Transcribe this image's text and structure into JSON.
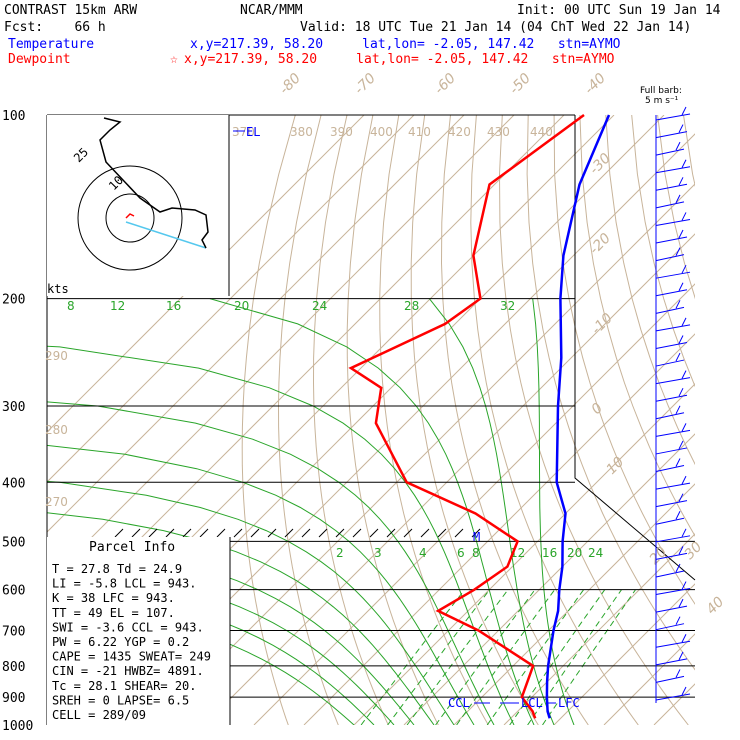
{
  "header": {
    "model": "CONTRAST 15km ARW",
    "center": "NCAR/MMM",
    "init": "Init: 00 UTC Sun 19 Jan 14",
    "fcst": "Fcst:    66 h",
    "valid": "Valid: 18 UTC Tue 21 Jan 14 (04 ChT Wed 22 Jan 14)",
    "temperature_label": "Temperature",
    "temperature_loc": "x,y=217.39, 58.20     lat,lon= -2.05, 147.42   stn=AYMO",
    "dewpoint_label": "Dewpoint",
    "dewpoint_loc": "x,y=217.39, 58.20     lat,lon= -2.05, 147.42   stn=AYMO",
    "dewpoint_marker": "☆"
  },
  "colors": {
    "temperature": "#0000ff",
    "dewpoint": "#ff0000",
    "isotherm": "#c8b49a",
    "green": "#2aa52a",
    "black": "#000000",
    "wind": "#0000ff",
    "hodo_line": "#55c8ee"
  },
  "chart_data": {
    "type": "skew-t",
    "pressure_levels": [
      100,
      200,
      300,
      400,
      500,
      600,
      700,
      800,
      900,
      1000
    ],
    "pressure_labels": [
      "100",
      "200",
      "300",
      "400",
      "500",
      "600",
      "700",
      "800",
      "900",
      "1000"
    ],
    "isotherm_labels": [
      "-80",
      "-70",
      "-60",
      "-50",
      "-40",
      "-30",
      "-20",
      "-10",
      "0",
      "10",
      "20",
      "30",
      "40"
    ],
    "theta_labels": [
      "370",
      "380",
      "390",
      "400",
      "410",
      "420",
      "430",
      "440",
      "290",
      "280",
      "270"
    ],
    "mixing_ratio_labels": [
      "8",
      "12",
      "16",
      "20",
      "24",
      "28",
      "32"
    ],
    "mixing_ratio_lower_labels": [
      "2",
      "3",
      "4",
      "6",
      "8",
      "12",
      "16",
      "20",
      "24"
    ],
    "series": [
      {
        "name": "Temperature",
        "points": [
          [
            100,
            -81
          ],
          [
            130,
            -73
          ],
          [
            170,
            -62
          ],
          [
            200,
            -54
          ],
          [
            250,
            -42
          ],
          [
            300,
            -33
          ],
          [
            400,
            -18
          ],
          [
            450,
            -10
          ],
          [
            500,
            -5
          ],
          [
            550,
            0
          ],
          [
            600,
            4
          ],
          [
            650,
            8
          ],
          [
            700,
            11
          ],
          [
            800,
            17
          ],
          [
            850,
            20
          ],
          [
            900,
            23
          ],
          [
            950,
            26
          ],
          [
            975,
            27.8
          ]
        ]
      },
      {
        "name": "Dewpoint",
        "points": [
          [
            100,
            -86
          ],
          [
            130,
            -91
          ],
          [
            170,
            -80
          ],
          [
            200,
            -70
          ],
          [
            220,
            -72
          ],
          [
            260,
            -82
          ],
          [
            280,
            -72
          ],
          [
            320,
            -66
          ],
          [
            400,
            -48
          ],
          [
            450,
            -28
          ],
          [
            500,
            -14
          ],
          [
            550,
            -11
          ],
          [
            600,
            -13
          ],
          [
            650,
            -16
          ],
          [
            700,
            -4
          ],
          [
            800,
            14
          ],
          [
            900,
            18
          ],
          [
            950,
            23
          ],
          [
            975,
            24.9
          ]
        ]
      }
    ],
    "wind_barbs_count": 34,
    "hodograph": {
      "ring_labels": [
        "25",
        "10"
      ],
      "units": "kts"
    }
  },
  "parcel": {
    "title": "Parcel Info",
    "rows": [
      "T  =    27.8  Td =  24.9",
      "LI =    -5.8  LCL =  943.",
      "K  =     38   LFC =  943.",
      "TT =     49   EL  =  107.",
      "SWI =   -3.6  CCL =  943.",
      "PW =    6.22  YGP =   0.2",
      "CAPE =  1435  SWEAT=  249",
      "CIN =    -21  HWBZ= 4891.",
      "Tc =    28.1  SHEAR=  20.",
      "SREH =     0  LAPSE=  6.5",
      "CELL = 289/09"
    ]
  },
  "markers": {
    "el": "EL",
    "m": "M",
    "ccl": "CCL",
    "lcl": "LCL",
    "lfc": "LFC"
  },
  "barb_key": {
    "line1": "Full barb:",
    "line2": "5 m s⁻¹"
  }
}
